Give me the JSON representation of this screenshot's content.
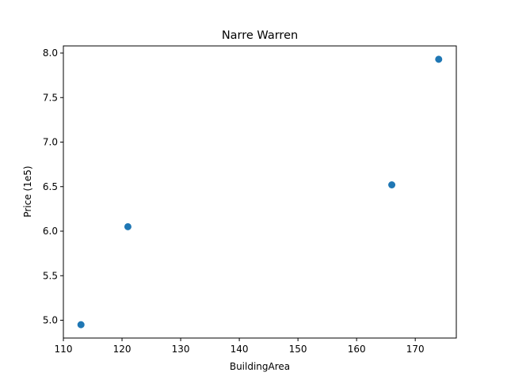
{
  "chart_data": {
    "type": "scatter",
    "title": "Narre Warren",
    "xlabel": "BuildingArea",
    "ylabel": "Price (1e5)",
    "xlim": [
      110,
      177
    ],
    "ylim": [
      4.8,
      8.08
    ],
    "xticks": [
      110,
      120,
      130,
      140,
      150,
      160,
      170
    ],
    "xtick_labels": [
      "110",
      "120",
      "130",
      "140",
      "150",
      "160",
      "170"
    ],
    "yticks": [
      5.0,
      5.5,
      6.0,
      6.5,
      7.0,
      7.5,
      8.0
    ],
    "ytick_labels": [
      "5.0",
      "5.5",
      "6.0",
      "6.5",
      "7.0",
      "7.5",
      "8.0"
    ],
    "grid": false,
    "marker_color": "#1f77b4",
    "points": [
      {
        "x": 113,
        "y": 4.95
      },
      {
        "x": 121,
        "y": 6.05
      },
      {
        "x": 166,
        "y": 6.52
      },
      {
        "x": 174,
        "y": 7.93
      }
    ]
  }
}
